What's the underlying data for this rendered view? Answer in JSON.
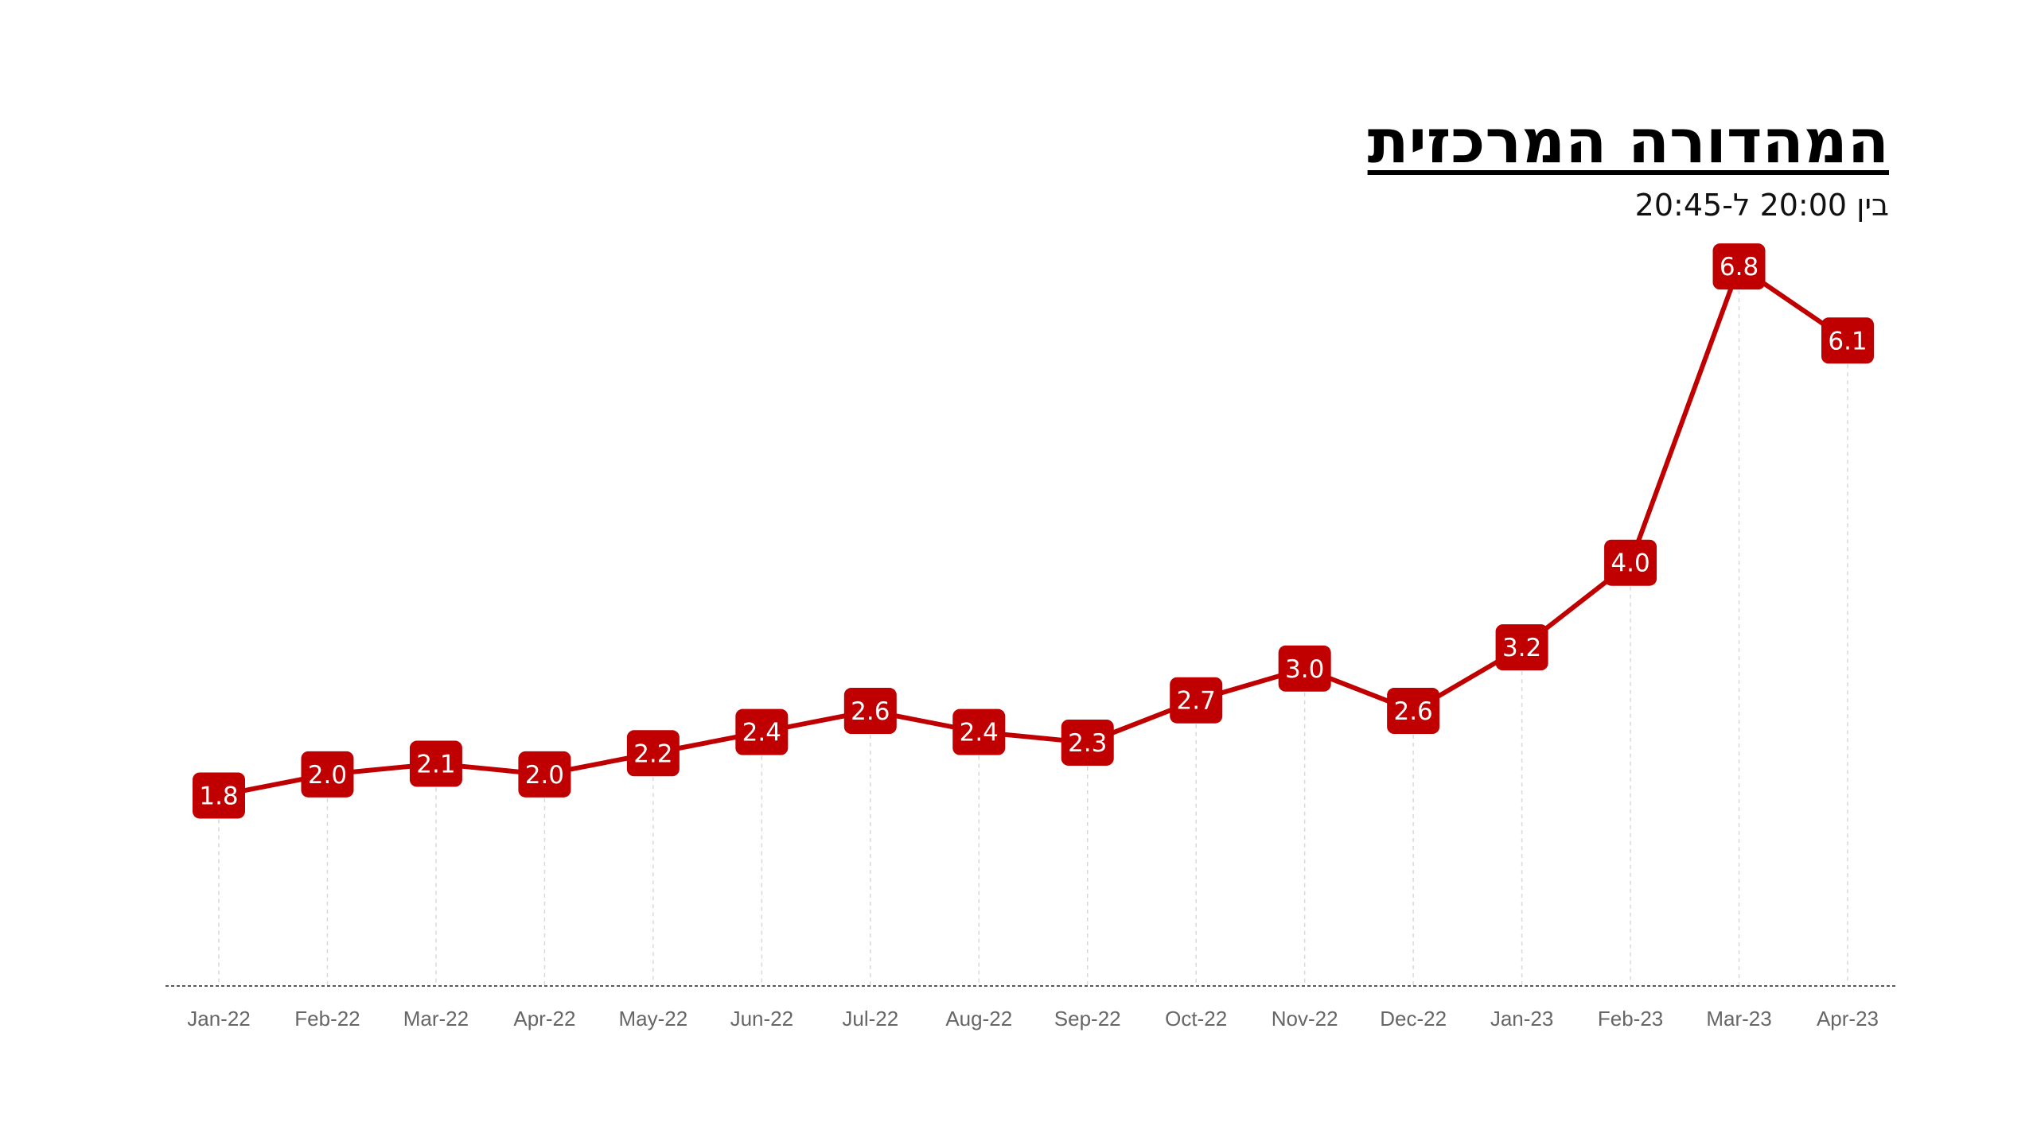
{
  "header": {
    "title": "המהדורה המרכזית",
    "subtitle": "בין 20:00 ל-20:45"
  },
  "colors": {
    "series": "#C00000",
    "axis": "#595959",
    "gridline": "#D9D9D9",
    "tick_text": "#666666",
    "label_text": "#ffffff"
  },
  "chart_data": {
    "type": "line",
    "title": "המהדורה המרכזית",
    "subtitle": "בין 20:00 ל-20:45",
    "categories": [
      "Jan-22",
      "Feb-22",
      "Mar-22",
      "Apr-22",
      "May-22",
      "Jun-22",
      "Jul-22",
      "Aug-22",
      "Sep-22",
      "Oct-22",
      "Nov-22",
      "Dec-22",
      "Jan-23",
      "Feb-23",
      "Mar-23",
      "Apr-23"
    ],
    "values": [
      1.8,
      2.0,
      2.1,
      2.0,
      2.2,
      2.4,
      2.6,
      2.4,
      2.3,
      2.7,
      3.0,
      2.6,
      3.2,
      4.0,
      6.8,
      6.1
    ],
    "value_labels": [
      "1.8",
      "2.0",
      "2.1",
      "2.0",
      "2.2",
      "2.4",
      "2.6",
      "2.4",
      "2.3",
      "2.7",
      "3.0",
      "2.6",
      "3.2",
      "4.0",
      "6.8",
      "6.1"
    ],
    "ylim": [
      0,
      7.5
    ],
    "xlabel": "",
    "ylabel": "",
    "grid": "vertical dashed drop lines",
    "legend": "none",
    "data_labels": "boxed, red, on each point"
  }
}
